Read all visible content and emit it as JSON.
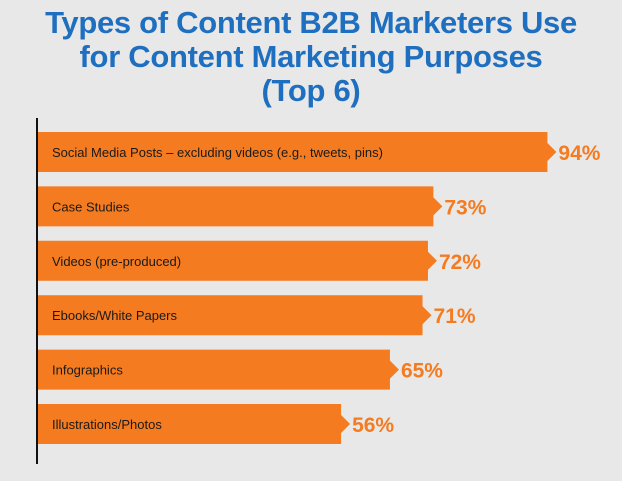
{
  "colors": {
    "title": "#1f6fc0",
    "bar": "#f47b20",
    "value_text": "#f47b20",
    "axis": "#111111",
    "background": "#e8e8e8"
  },
  "chart_data": {
    "type": "bar",
    "orientation": "horizontal",
    "title_lines": [
      "Types of Content B2B Marketers Use",
      "for Content Marketing Purposes",
      "(Top 6)"
    ],
    "categories": [
      "Social Media Posts – excluding videos (e.g., tweets, pins)",
      "Case Studies",
      "Videos (pre-produced)",
      "Ebooks/White Papers",
      "Infographics",
      "Illustrations/Photos"
    ],
    "values": [
      94,
      73,
      72,
      71,
      65,
      56
    ],
    "value_labels": [
      "94%",
      "73%",
      "72%",
      "71%",
      "65%",
      "56%"
    ],
    "xlim": [
      0,
      100
    ],
    "grid": false,
    "legend": "none"
  }
}
